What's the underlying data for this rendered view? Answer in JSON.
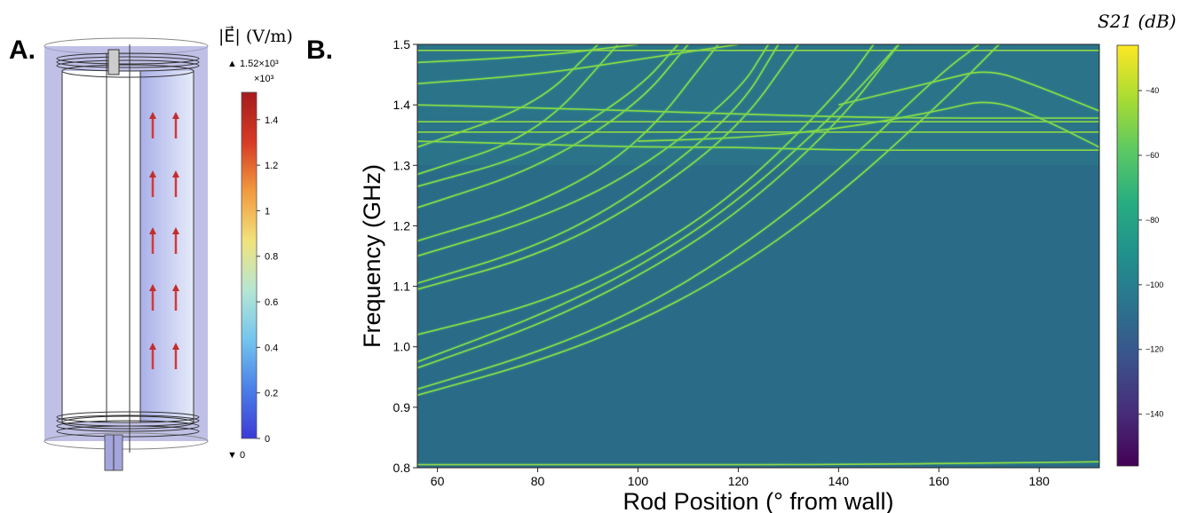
{
  "panel_a": {
    "label": "A.",
    "colorbar": {
      "title": "|E⃗| (V/m)",
      "max_marker": "▲ 1.52×10³",
      "multiplier": "×10³",
      "min_marker": "▼ 0",
      "ticks": [
        "0",
        "0.2",
        "0.4",
        "0.6",
        "0.8",
        "1",
        "1.2",
        "1.4"
      ],
      "tick_values": [
        0,
        0.2,
        0.4,
        0.6,
        0.8,
        1.0,
        1.2,
        1.4
      ],
      "range": [
        0,
        1.52
      ],
      "colormap": [
        "#3b3bd6",
        "#4a7fe8",
        "#74c5ee",
        "#b6e6d3",
        "#f1e27c",
        "#f29a3f",
        "#d63a25",
        "#a51c1c"
      ]
    },
    "arrows": 10,
    "cavity_color": "#9b9bd8"
  },
  "panel_b": {
    "label": "B."
  },
  "chart_data": {
    "type": "heatmap",
    "title": "",
    "xlabel": "Rod Position (° from wall)",
    "ylabel": "Frequency (GHz)",
    "xlim": [
      56,
      192
    ],
    "ylim": [
      0.8,
      1.5
    ],
    "x_ticks": [
      60,
      80,
      100,
      120,
      140,
      160,
      180
    ],
    "y_ticks": [
      0.8,
      0.9,
      1.0,
      1.1,
      1.2,
      1.3,
      1.4,
      1.5
    ],
    "background_db": -100,
    "mode_db": -60,
    "modes": [
      {
        "x": [
          56,
          80,
          100,
          120,
          140,
          160,
          172
        ],
        "y": [
          0.92,
          0.975,
          1.04,
          1.13,
          1.25,
          1.4,
          1.5
        ]
      },
      {
        "x": [
          56,
          80,
          100,
          120,
          140,
          160,
          168
        ],
        "y": [
          0.93,
          0.99,
          1.06,
          1.16,
          1.29,
          1.45,
          1.5
        ]
      },
      {
        "x": [
          56,
          80,
          100,
          120,
          140,
          152
        ],
        "y": [
          0.965,
          1.035,
          1.115,
          1.22,
          1.37,
          1.5
        ]
      },
      {
        "x": [
          56,
          80,
          100,
          120,
          140,
          152
        ],
        "y": [
          0.975,
          1.05,
          1.13,
          1.24,
          1.39,
          1.5
        ]
      },
      {
        "x": [
          56,
          80,
          100,
          120,
          140,
          147
        ],
        "y": [
          1.02,
          1.07,
          1.145,
          1.255,
          1.42,
          1.5
        ]
      },
      {
        "x": [
          56,
          80,
          100,
          120,
          132
        ],
        "y": [
          1.095,
          1.15,
          1.235,
          1.36,
          1.5
        ]
      },
      {
        "x": [
          56,
          80,
          100,
          120,
          128
        ],
        "y": [
          1.105,
          1.165,
          1.255,
          1.39,
          1.5
        ]
      },
      {
        "x": [
          56,
          80,
          100,
          120,
          126
        ],
        "y": [
          1.15,
          1.21,
          1.29,
          1.42,
          1.5
        ]
      },
      {
        "x": [
          56,
          80,
          100,
          116
        ],
        "y": [
          1.175,
          1.235,
          1.33,
          1.5
        ]
      },
      {
        "x": [
          56,
          80,
          100,
          110
        ],
        "y": [
          1.23,
          1.295,
          1.4,
          1.5
        ]
      },
      {
        "x": [
          56,
          80,
          100,
          108
        ],
        "y": [
          1.265,
          1.32,
          1.425,
          1.5
        ]
      },
      {
        "x": [
          56,
          80,
          96
        ],
        "y": [
          1.285,
          1.35,
          1.5
        ]
      },
      {
        "x": [
          56,
          80,
          92
        ],
        "y": [
          1.33,
          1.4,
          1.5
        ]
      },
      {
        "x": [
          56,
          80,
          100,
          120,
          140,
          160,
          192
        ],
        "y": [
          1.34,
          1.335,
          1.33,
          1.33,
          1.325,
          1.325,
          1.325
        ]
      },
      {
        "x": [
          56,
          80,
          100,
          120,
          140,
          160,
          192
        ],
        "y": [
          1.355,
          1.355,
          1.355,
          1.355,
          1.355,
          1.355,
          1.355
        ]
      },
      {
        "x": [
          56,
          80,
          100,
          120,
          140,
          160,
          192
        ],
        "y": [
          1.372,
          1.372,
          1.372,
          1.372,
          1.372,
          1.372,
          1.372
        ]
      },
      {
        "x": [
          56,
          80,
          100,
          120,
          140,
          160,
          192
        ],
        "y": [
          1.4,
          1.395,
          1.39,
          1.385,
          1.38,
          1.378,
          1.378
        ]
      },
      {
        "x": [
          56,
          80,
          100,
          120
        ],
        "y": [
          1.435,
          1.45,
          1.475,
          1.5
        ]
      },
      {
        "x": [
          56,
          80,
          100
        ],
        "y": [
          1.47,
          1.48,
          1.5
        ]
      },
      {
        "x": [
          56,
          80,
          100,
          120,
          140,
          160,
          192
        ],
        "y": [
          1.49,
          1.49,
          1.49,
          1.49,
          1.49,
          1.49,
          1.49
        ]
      },
      {
        "x": [
          100,
          120,
          140,
          160,
          170,
          180,
          192
        ],
        "y": [
          1.34,
          1.345,
          1.36,
          1.39,
          1.41,
          1.38,
          1.33
        ]
      },
      {
        "x": [
          140,
          160,
          170,
          180,
          192
        ],
        "y": [
          1.4,
          1.44,
          1.46,
          1.43,
          1.39
        ]
      },
      {
        "x": [
          56,
          100,
          140,
          192
        ],
        "y": [
          0.805,
          0.805,
          0.805,
          0.81
        ]
      }
    ],
    "colorbar": {
      "label": "S21 (dB)",
      "ticks": [
        "−40",
        "−60",
        "−80",
        "−100",
        "−120",
        "−140"
      ],
      "tick_values": [
        -40,
        -60,
        -80,
        -100,
        -120,
        -140
      ],
      "range": [
        -156,
        -26
      ],
      "colormap": [
        "#440154",
        "#472c7a",
        "#3b518b",
        "#2c718e",
        "#21908d",
        "#27ad81",
        "#5cc863",
        "#aadc32",
        "#fde725"
      ]
    }
  }
}
